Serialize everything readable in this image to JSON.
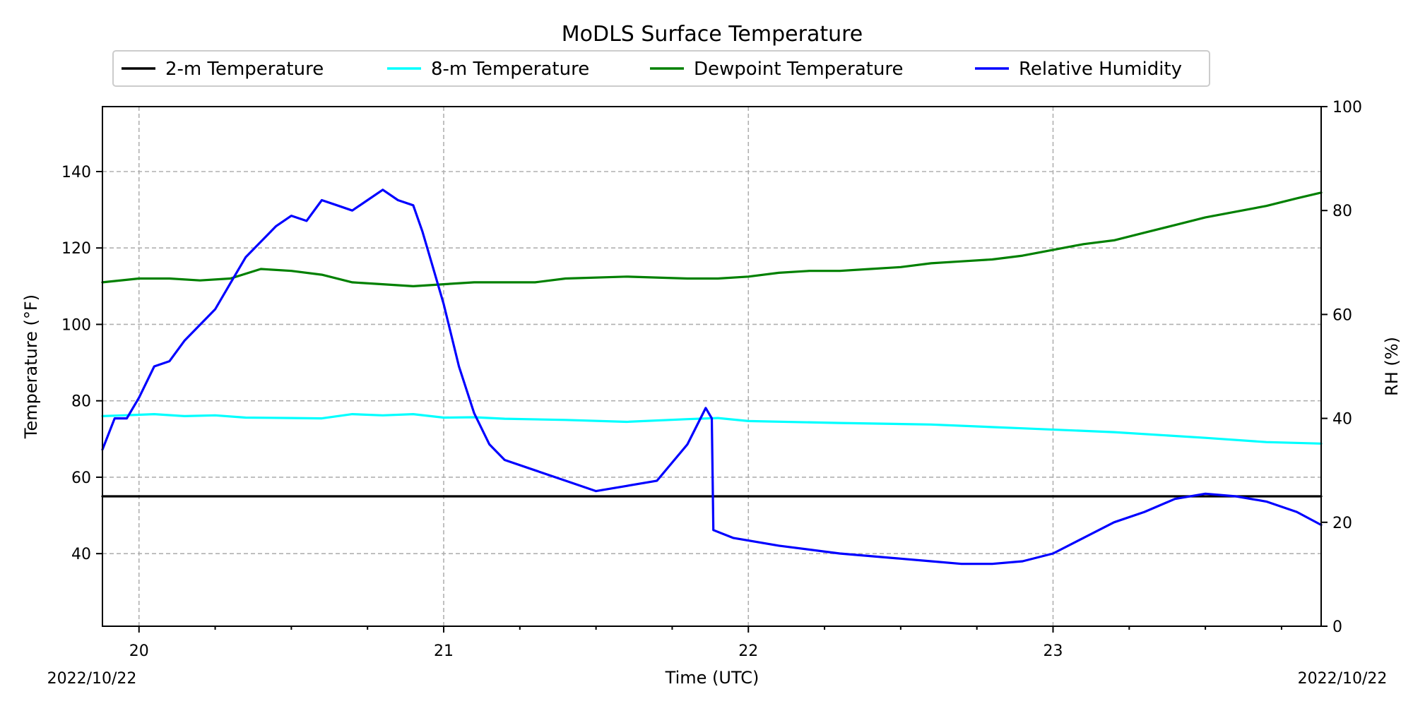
{
  "chart_data": {
    "type": "line",
    "title": "MoDLS Surface Temperature",
    "xlabel": "Time (UTC)",
    "ylabel_left": "Temperature ($^\\circ$F)",
    "ylabel_left_display": "Temperature (°F)",
    "ylabel_right": "RH (%)",
    "date_left": "2022/10/22",
    "date_right": "2022/10/22",
    "x_unit": "hour (UTC)",
    "xlim": [
      19.88,
      23.88
    ],
    "ylim_left": [
      21,
      157
    ],
    "ylim_right": [
      0,
      100
    ],
    "x_ticks": [
      20,
      21,
      22,
      23
    ],
    "x_tick_labels": [
      "20",
      "21",
      "22",
      "23"
    ],
    "y_left_ticks": [
      40,
      60,
      80,
      100,
      120,
      140
    ],
    "y_left_tick_labels": [
      "40",
      "60",
      "80",
      "100",
      "120",
      "140"
    ],
    "y_right_ticks": [
      0,
      20,
      40,
      60,
      80,
      100
    ],
    "y_right_tick_labels": [
      "0",
      "20",
      "40",
      "60",
      "80",
      "100"
    ],
    "grid": true,
    "legend": {
      "placement": "top-center, above plot",
      "columns": 4
    },
    "series": [
      {
        "name": "2-m Temperature",
        "color": "#000000",
        "axis": "left",
        "points": [
          [
            19.88,
            55
          ],
          [
            23.88,
            55
          ]
        ]
      },
      {
        "name": "8-m Temperature",
        "color": "#00ffff",
        "axis": "left",
        "points": [
          [
            19.88,
            76
          ],
          [
            19.95,
            76.2
          ],
          [
            20.05,
            76.5
          ],
          [
            20.15,
            76
          ],
          [
            20.25,
            76.2
          ],
          [
            20.35,
            75.6
          ],
          [
            20.5,
            75.5
          ],
          [
            20.6,
            75.4
          ],
          [
            20.7,
            76.5
          ],
          [
            20.8,
            76.2
          ],
          [
            20.9,
            76.5
          ],
          [
            21.0,
            75.6
          ],
          [
            21.1,
            75.7
          ],
          [
            21.2,
            75.3
          ],
          [
            21.4,
            75
          ],
          [
            21.6,
            74.5
          ],
          [
            21.8,
            75.2
          ],
          [
            21.9,
            75.5
          ],
          [
            22.0,
            74.7
          ],
          [
            22.3,
            74.2
          ],
          [
            22.6,
            73.8
          ],
          [
            22.9,
            72.8
          ],
          [
            23.2,
            71.8
          ],
          [
            23.5,
            70.3
          ],
          [
            23.7,
            69.2
          ],
          [
            23.88,
            68.8
          ]
        ]
      },
      {
        "name": "Dewpoint Temperature",
        "color": "#008000",
        "axis": "left",
        "points": [
          [
            19.88,
            111
          ],
          [
            20.0,
            112
          ],
          [
            20.1,
            112
          ],
          [
            20.2,
            111.5
          ],
          [
            20.3,
            112
          ],
          [
            20.4,
            114.5
          ],
          [
            20.5,
            114
          ],
          [
            20.6,
            113
          ],
          [
            20.7,
            111
          ],
          [
            20.8,
            110.5
          ],
          [
            20.9,
            110
          ],
          [
            21.0,
            110.5
          ],
          [
            21.1,
            111
          ],
          [
            21.3,
            111
          ],
          [
            21.4,
            112
          ],
          [
            21.6,
            112.5
          ],
          [
            21.8,
            112
          ],
          [
            21.9,
            112
          ],
          [
            22.0,
            112.5
          ],
          [
            22.1,
            113.5
          ],
          [
            22.2,
            114
          ],
          [
            22.3,
            114
          ],
          [
            22.4,
            114.5
          ],
          [
            22.5,
            115
          ],
          [
            22.6,
            116
          ],
          [
            22.7,
            116.5
          ],
          [
            22.8,
            117
          ],
          [
            22.9,
            118
          ],
          [
            23.0,
            119.5
          ],
          [
            23.1,
            121
          ],
          [
            23.2,
            122
          ],
          [
            23.3,
            124
          ],
          [
            23.4,
            126
          ],
          [
            23.5,
            128
          ],
          [
            23.6,
            129.5
          ],
          [
            23.7,
            131
          ],
          [
            23.8,
            133
          ],
          [
            23.88,
            134.5
          ]
        ]
      },
      {
        "name": "Relative Humidity",
        "color": "#0000ff",
        "axis": "right",
        "points": [
          [
            19.88,
            34
          ],
          [
            19.92,
            40
          ],
          [
            19.96,
            40
          ],
          [
            20.0,
            44
          ],
          [
            20.05,
            50
          ],
          [
            20.1,
            51
          ],
          [
            20.15,
            55
          ],
          [
            20.2,
            58
          ],
          [
            20.25,
            61
          ],
          [
            20.3,
            66
          ],
          [
            20.35,
            71
          ],
          [
            20.4,
            74
          ],
          [
            20.45,
            77
          ],
          [
            20.5,
            79
          ],
          [
            20.55,
            78
          ],
          [
            20.6,
            82
          ],
          [
            20.65,
            81
          ],
          [
            20.7,
            80
          ],
          [
            20.75,
            82
          ],
          [
            20.8,
            84
          ],
          [
            20.85,
            82
          ],
          [
            20.9,
            81
          ],
          [
            20.93,
            76
          ],
          [
            20.96,
            70
          ],
          [
            21.0,
            62
          ],
          [
            21.05,
            50
          ],
          [
            21.1,
            41
          ],
          [
            21.15,
            35
          ],
          [
            21.2,
            32
          ],
          [
            21.3,
            30
          ],
          [
            21.4,
            28
          ],
          [
            21.5,
            26
          ],
          [
            21.6,
            27
          ],
          [
            21.7,
            28
          ],
          [
            21.8,
            35
          ],
          [
            21.86,
            42
          ],
          [
            21.88,
            40
          ],
          [
            21.885,
            18.5
          ],
          [
            21.95,
            17
          ],
          [
            22.1,
            15.5
          ],
          [
            22.3,
            14
          ],
          [
            22.5,
            13
          ],
          [
            22.6,
            12.5
          ],
          [
            22.7,
            12
          ],
          [
            22.8,
            12
          ],
          [
            22.9,
            12.5
          ],
          [
            23.0,
            14
          ],
          [
            23.1,
            17
          ],
          [
            23.2,
            20
          ],
          [
            23.3,
            22
          ],
          [
            23.4,
            24.5
          ],
          [
            23.5,
            25.5
          ],
          [
            23.6,
            25
          ],
          [
            23.7,
            24
          ],
          [
            23.8,
            22
          ],
          [
            23.88,
            19.5
          ]
        ]
      }
    ]
  }
}
